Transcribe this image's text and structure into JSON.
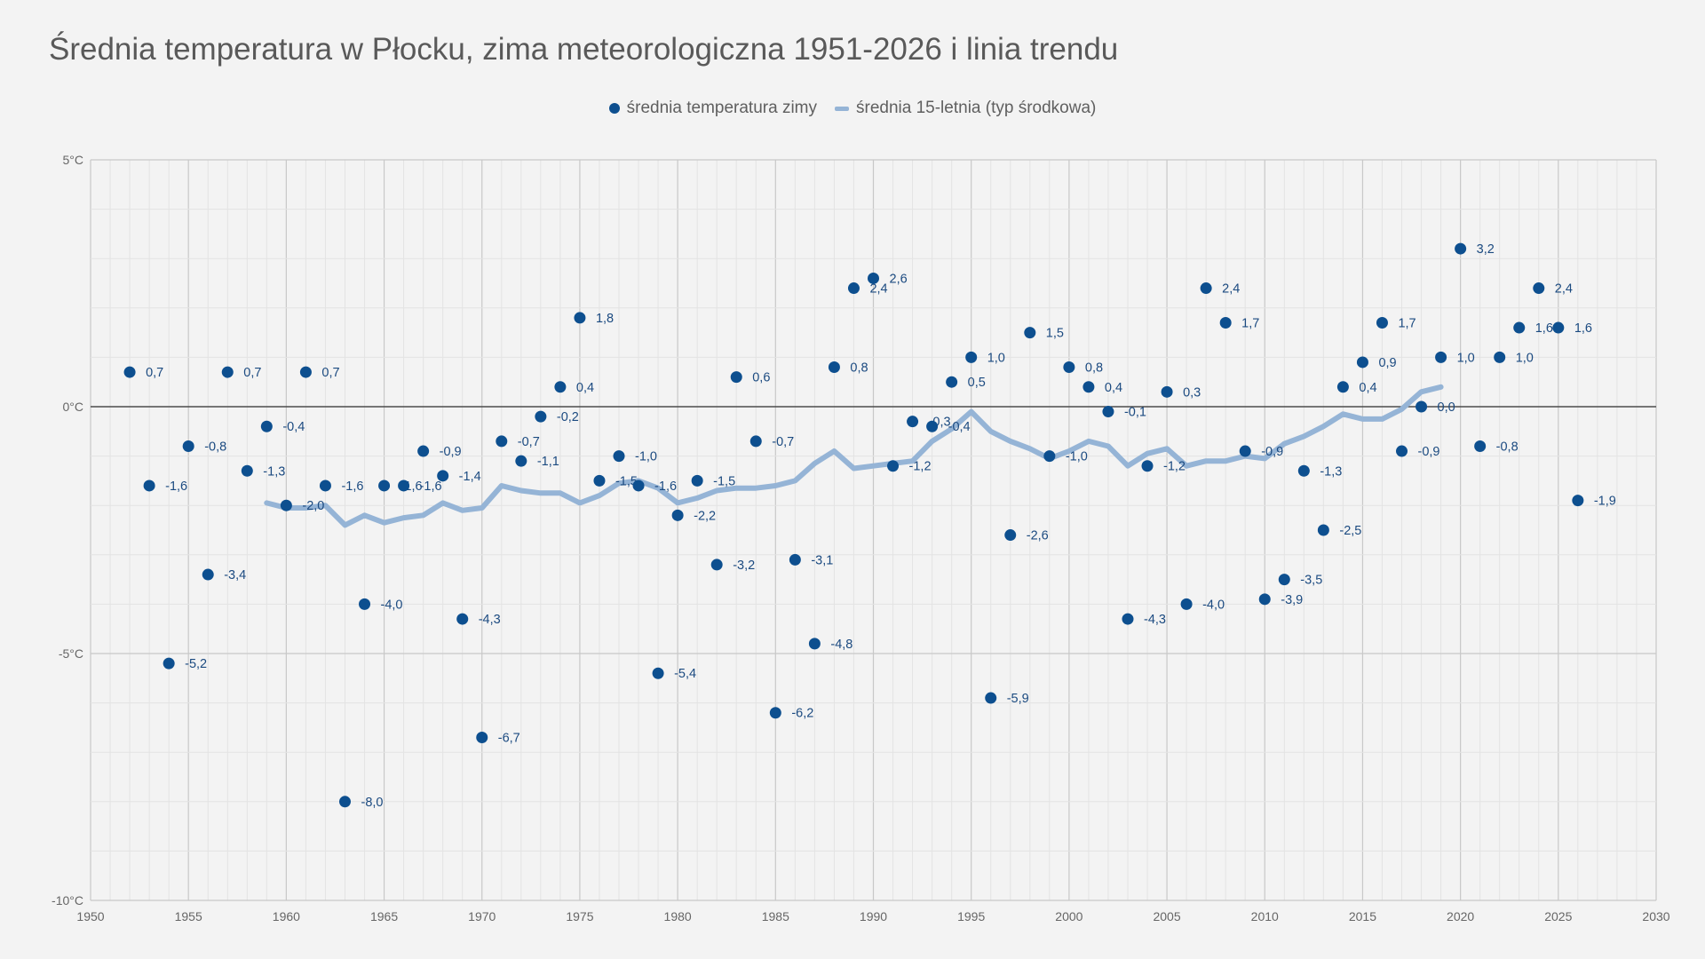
{
  "chart_data": {
    "type": "scatter",
    "title": "Średnia temperatura w Płocku, zima meteorologiczna 1951-2026 i linia trendu",
    "xlim": [
      1950,
      2030
    ],
    "ylim": [
      -10,
      5
    ],
    "x_ticks": [
      "1950",
      "1955",
      "1960",
      "1965",
      "1970",
      "1975",
      "1980",
      "1985",
      "1990",
      "1995",
      "2000",
      "2005",
      "2010",
      "2015",
      "2020",
      "2025",
      "2030"
    ],
    "x_tick_values": [
      1950,
      1955,
      1960,
      1965,
      1970,
      1975,
      1980,
      1985,
      1990,
      1995,
      2000,
      2005,
      2010,
      2015,
      2020,
      2025,
      2030
    ],
    "y_ticks": [
      "5°C",
      "0°C",
      "-5°C",
      "-10°C"
    ],
    "y_tick_values": [
      5,
      0,
      -5,
      -10
    ],
    "legend": {
      "position": "top-center",
      "items": [
        {
          "name": "średnia temperatura zimy",
          "color": "#0d4f8f",
          "kind": "dot"
        },
        {
          "name": "średnia 15-letnia (typ środkowa)",
          "color": "#95b4d6",
          "kind": "line"
        }
      ]
    },
    "colors": {
      "points": "#0d4f8f",
      "trend": "#95b4d6",
      "labels": "#1b4a80",
      "grid": "#dadada",
      "zero": "#333333"
    },
    "series": [
      {
        "name": "średnia temperatura zimy",
        "points": [
          {
            "x": 1952,
            "y": 0.7,
            "label": "0,7"
          },
          {
            "x": 1953,
            "y": -1.6,
            "label": "-1,6"
          },
          {
            "x": 1954,
            "y": -5.2,
            "label": "-5,2"
          },
          {
            "x": 1955,
            "y": -0.8,
            "label": "-0,8"
          },
          {
            "x": 1956,
            "y": -3.4,
            "label": "-3,4"
          },
          {
            "x": 1957,
            "y": 0.7,
            "label": "0,7"
          },
          {
            "x": 1958,
            "y": -1.3,
            "label": "-1,3"
          },
          {
            "x": 1959,
            "y": -0.4,
            "label": "-0,4"
          },
          {
            "x": 1960,
            "y": -2.0,
            "label": "-2,0"
          },
          {
            "x": 1961,
            "y": 0.7,
            "label": "0,7"
          },
          {
            "x": 1962,
            "y": -1.6,
            "label": "-1,6"
          },
          {
            "x": 1963,
            "y": -8.0,
            "label": "-8,0"
          },
          {
            "x": 1964,
            "y": -4.0,
            "label": "-4,0"
          },
          {
            "x": 1965,
            "y": -1.6,
            "label": "-1,6"
          },
          {
            "x": 1966,
            "y": -1.6,
            "label": "-1,6"
          },
          {
            "x": 1967,
            "y": -0.9,
            "label": "-0,9"
          },
          {
            "x": 1968,
            "y": -1.4,
            "label": "-1,4"
          },
          {
            "x": 1969,
            "y": -4.3,
            "label": "-4,3"
          },
          {
            "x": 1970,
            "y": -6.7,
            "label": "-6,7"
          },
          {
            "x": 1971,
            "y": -0.7,
            "label": "-0,7"
          },
          {
            "x": 1972,
            "y": -1.1,
            "label": "-1,1"
          },
          {
            "x": 1973,
            "y": -0.2,
            "label": "-0,2"
          },
          {
            "x": 1974,
            "y": 0.4,
            "label": "0,4"
          },
          {
            "x": 1975,
            "y": 1.8,
            "label": "1,8"
          },
          {
            "x": 1976,
            "y": -1.5,
            "label": "-1,5"
          },
          {
            "x": 1977,
            "y": -1.0,
            "label": "-1,0"
          },
          {
            "x": 1978,
            "y": -1.6,
            "label": "-1,6"
          },
          {
            "x": 1979,
            "y": -5.4,
            "label": "-5,4"
          },
          {
            "x": 1980,
            "y": -2.2,
            "label": "-2,2"
          },
          {
            "x": 1981,
            "y": -1.5,
            "label": "-1,5"
          },
          {
            "x": 1982,
            "y": -3.2,
            "label": "-3,2"
          },
          {
            "x": 1983,
            "y": 0.6,
            "label": "0,6"
          },
          {
            "x": 1984,
            "y": -0.7,
            "label": "-0,7"
          },
          {
            "x": 1985,
            "y": -6.2,
            "label": "-6,2"
          },
          {
            "x": 1986,
            "y": -3.1,
            "label": "-3,1"
          },
          {
            "x": 1987,
            "y": -4.8,
            "label": "-4,8"
          },
          {
            "x": 1988,
            "y": 0.8,
            "label": "0,8"
          },
          {
            "x": 1989,
            "y": 2.4,
            "label": "2,4"
          },
          {
            "x": 1990,
            "y": 2.6,
            "label": "2,6"
          },
          {
            "x": 1991,
            "y": -1.2,
            "label": "-1,2"
          },
          {
            "x": 1992,
            "y": -0.3,
            "label": "-0,3"
          },
          {
            "x": 1993,
            "y": -0.4,
            "label": "-0,4"
          },
          {
            "x": 1994,
            "y": 0.5,
            "label": "0,5"
          },
          {
            "x": 1995,
            "y": 1.0,
            "label": "1,0"
          },
          {
            "x": 1996,
            "y": -5.9,
            "label": "-5,9"
          },
          {
            "x": 1997,
            "y": -2.6,
            "label": "-2,6"
          },
          {
            "x": 1998,
            "y": 1.5,
            "label": "1,5"
          },
          {
            "x": 1999,
            "y": -1.0,
            "label": "-1,0"
          },
          {
            "x": 2000,
            "y": 0.8,
            "label": "0,8"
          },
          {
            "x": 2001,
            "y": 0.4,
            "label": "0,4"
          },
          {
            "x": 2002,
            "y": -0.1,
            "label": "-0,1"
          },
          {
            "x": 2003,
            "y": -4.3,
            "label": "-4,3"
          },
          {
            "x": 2004,
            "y": -1.2,
            "label": "-1,2"
          },
          {
            "x": 2005,
            "y": 0.3,
            "label": "0,3"
          },
          {
            "x": 2006,
            "y": -4.0,
            "label": "-4,0"
          },
          {
            "x": 2007,
            "y": 2.4,
            "label": "2,4"
          },
          {
            "x": 2008,
            "y": 1.7,
            "label": "1,7"
          },
          {
            "x": 2009,
            "y": -0.9,
            "label": "-0,9"
          },
          {
            "x": 2010,
            "y": -3.9,
            "label": "-3,9"
          },
          {
            "x": 2011,
            "y": -3.5,
            "label": "-3,5"
          },
          {
            "x": 2012,
            "y": -1.3,
            "label": "-1,3"
          },
          {
            "x": 2013,
            "y": -2.5,
            "label": "-2,5"
          },
          {
            "x": 2014,
            "y": 0.4,
            "label": "0,4"
          },
          {
            "x": 2015,
            "y": 0.9,
            "label": "0,9"
          },
          {
            "x": 2016,
            "y": 1.7,
            "label": "1,7"
          },
          {
            "x": 2017,
            "y": -0.9,
            "label": "-0,9"
          },
          {
            "x": 2018,
            "y": 0.0,
            "label": "0,0"
          },
          {
            "x": 2019,
            "y": 1.0,
            "label": "1,0"
          },
          {
            "x": 2020,
            "y": 3.2,
            "label": "3,2"
          },
          {
            "x": 2021,
            "y": -0.8,
            "label": "-0,8"
          },
          {
            "x": 2022,
            "y": 1.0,
            "label": "1,0"
          },
          {
            "x": 2023,
            "y": 1.6,
            "label": "1,6"
          },
          {
            "x": 2024,
            "y": 2.4,
            "label": "2,4"
          },
          {
            "x": 2025,
            "y": 1.6,
            "label": "1,6"
          },
          {
            "x": 2026,
            "y": -1.9,
            "label": "-1,9"
          }
        ]
      },
      {
        "name": "średnia 15-letnia (typ środkowa)",
        "type": "line",
        "x": [
          1959,
          1960,
          1961,
          1962,
          1963,
          1964,
          1965,
          1966,
          1967,
          1968,
          1969,
          1970,
          1971,
          1972,
          1973,
          1974,
          1975,
          1976,
          1977,
          1978,
          1979,
          1980,
          1981,
          1982,
          1983,
          1984,
          1985,
          1986,
          1987,
          1988,
          1989,
          1990,
          1991,
          1992,
          1993,
          1994,
          1995,
          1996,
          1997,
          1998,
          1999,
          2000,
          2001,
          2002,
          2003,
          2004,
          2005,
          2006,
          2007,
          2008,
          2009,
          2010,
          2011,
          2012,
          2013,
          2014,
          2015,
          2016,
          2017,
          2018,
          2019
        ],
        "y": [
          -1.95,
          -2.05,
          -2.05,
          -2.0,
          -2.4,
          -2.2,
          -2.35,
          -2.25,
          -2.2,
          -1.95,
          -2.1,
          -2.05,
          -1.6,
          -1.7,
          -1.75,
          -1.75,
          -1.95,
          -1.8,
          -1.55,
          -1.5,
          -1.65,
          -1.95,
          -1.85,
          -1.7,
          -1.65,
          -1.65,
          -1.6,
          -1.5,
          -1.15,
          -0.9,
          -1.25,
          -1.2,
          -1.15,
          -1.1,
          -0.7,
          -0.45,
          -0.1,
          -0.5,
          -0.7,
          -0.85,
          -1.05,
          -0.9,
          -0.7,
          -0.8,
          -1.2,
          -0.95,
          -0.85,
          -1.2,
          -1.1,
          -1.1,
          -1.0,
          -1.05,
          -0.75,
          -0.6,
          -0.4,
          -0.15,
          -0.25,
          -0.25,
          -0.05,
          0.3,
          0.4
        ]
      }
    ]
  }
}
